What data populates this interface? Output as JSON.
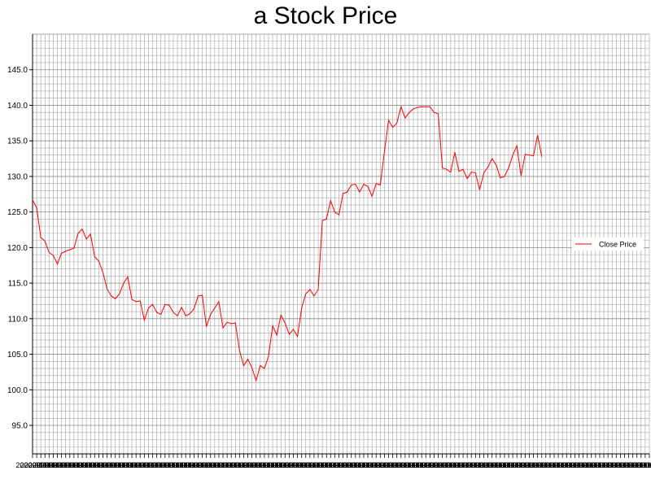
{
  "chart_data": {
    "type": "line",
    "title": "a Stock Price",
    "xlabel": "",
    "ylabel": "",
    "xlim_points": 150,
    "ylim": [
      91.0,
      150.0
    ],
    "yticks": [
      95.0,
      100.0,
      105.0,
      110.0,
      115.0,
      120.0,
      125.0,
      130.0,
      135.0,
      140.0,
      145.0
    ],
    "ytick_labels": [
      "95.0",
      "100.0",
      "105.0",
      "110.0",
      "115.0",
      "120.0",
      "125.0",
      "130.0",
      "135.0",
      "140.0",
      "145.0"
    ],
    "x_tick_label": "2020-01-0",
    "x_tick_note": "x-axis shows one dense, overlapping date label per data point beginning with 2020",
    "grid": true,
    "legend_position": "right",
    "series": [
      {
        "name": "Close Price",
        "color": "#ff0000",
        "values": [
          126.7,
          125.6,
          121.4,
          120.9,
          119.3,
          118.9,
          117.7,
          119.2,
          119.5,
          119.7,
          119.9,
          122.0,
          122.6,
          121.2,
          121.9,
          118.7,
          118.1,
          116.5,
          114.2,
          113.2,
          112.8,
          113.5,
          115.0,
          115.9,
          112.7,
          112.4,
          112.5,
          109.8,
          111.5,
          112.0,
          110.9,
          110.6,
          112.0,
          111.9,
          110.9,
          110.4,
          111.6,
          110.4,
          110.7,
          111.4,
          113.2,
          113.3,
          108.9,
          110.6,
          111.5,
          112.4,
          108.7,
          109.5,
          109.3,
          109.4,
          105.5,
          103.4,
          104.3,
          103.1,
          101.3,
          103.4,
          103.0,
          104.7,
          109.0,
          107.7,
          110.5,
          109.4,
          107.8,
          108.5,
          107.5,
          111.5,
          113.5,
          114.1,
          113.2,
          114.1,
          123.8,
          124.0,
          126.6,
          125.0,
          124.6,
          127.6,
          127.8,
          128.8,
          128.9,
          127.8,
          128.9,
          128.6,
          127.2,
          129.0,
          128.8,
          133.5,
          137.9,
          136.9,
          137.5,
          139.8,
          138.2,
          139.0,
          139.5,
          139.7,
          139.8,
          139.8,
          139.8,
          139.0,
          138.8,
          131.2,
          131.0,
          130.6,
          133.4,
          130.7,
          131.0,
          129.7,
          130.6,
          130.5,
          128.1,
          130.5,
          131.3,
          132.5,
          131.6,
          129.8,
          130.0,
          131.2,
          133.0,
          134.3,
          130.1,
          133.1,
          133.0,
          132.9,
          135.8,
          132.8
        ]
      }
    ]
  }
}
